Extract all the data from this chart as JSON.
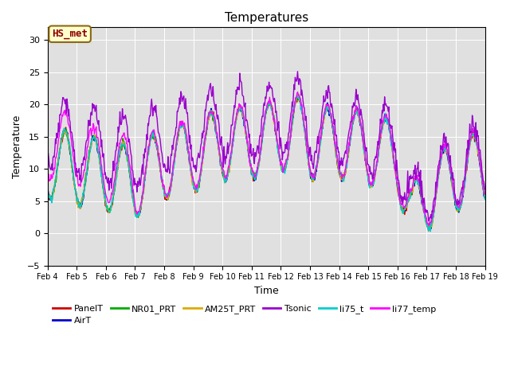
{
  "title": "Temperatures",
  "xlabel": "Time",
  "ylabel": "Temperature",
  "ylim": [
    -5,
    32
  ],
  "yticks": [
    -5,
    0,
    5,
    10,
    15,
    20,
    25,
    30
  ],
  "bg_color": "#e0e0e0",
  "series_colors": {
    "PanelT": "#cc0000",
    "AirT": "#0000cc",
    "NR01_PRT": "#00aa00",
    "AM25T_PRT": "#ddaa00",
    "Tsonic": "#9900cc",
    "li75_t": "#00cccc",
    "li77_temp": "#ff00ff"
  },
  "legend_order": [
    "PanelT",
    "AirT",
    "NR01_PRT",
    "AM25T_PRT",
    "Tsonic",
    "li75_t",
    "li77_temp"
  ],
  "xtick_labels": [
    "Feb 4",
    "Feb 5",
    "Feb 6",
    "Feb 7",
    "Feb 8",
    "Feb 9",
    "Feb 10",
    "Feb 11",
    "Feb 12",
    "Feb 13",
    "Feb 14",
    "Feb 15",
    "Feb 16",
    "Feb 17",
    "Feb 18",
    "Feb 19"
  ],
  "annotation_text": "HS_met",
  "annotation_color": "#8b0000",
  "annotation_bg": "#ffffcc",
  "annotation_border": "#8b6914"
}
